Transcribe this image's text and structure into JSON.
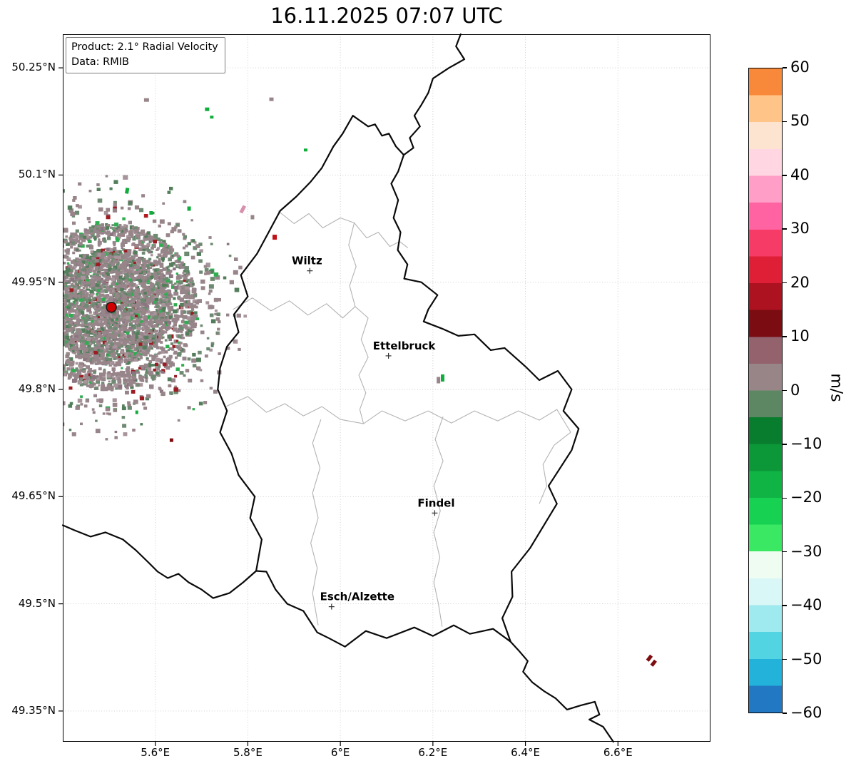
{
  "chart_data": {
    "type": "heatmap",
    "title": "16.11.2025 07:07 UTC",
    "product": "2.1° Radial Velocity",
    "data_source": "RMIB",
    "info_box_lines": [
      "Product: 2.1° Radial Velocity",
      "Data: RMIB"
    ],
    "lon_range": [
      5.4,
      6.8
    ],
    "lat_range": [
      49.307,
      50.297
    ],
    "grid": "dotted",
    "x_ticks": {
      "values": [
        5.6,
        5.8,
        6.0,
        6.2,
        6.4,
        6.6
      ],
      "labels": [
        "5.6°E",
        "5.8°E",
        "6°E",
        "6.2°E",
        "6.4°E",
        "6.6°E"
      ]
    },
    "y_ticks": {
      "values": [
        50.25,
        50.1,
        49.95,
        49.8,
        49.65,
        49.5,
        49.35
      ],
      "labels": [
        "50.25°N",
        "50.1°N",
        "49.95°N",
        "49.8°N",
        "49.65°N",
        "49.5°N",
        "49.35°N"
      ]
    },
    "colorbar": {
      "label": "m/s",
      "min": -60,
      "max": 60,
      "tick_values": [
        60,
        50,
        40,
        30,
        20,
        10,
        0,
        -10,
        -20,
        -30,
        -40,
        -50,
        -60
      ],
      "tick_labels": [
        "60",
        "50",
        "40",
        "30",
        "20",
        "10",
        "0",
        "−10",
        "−20",
        "−30",
        "−40",
        "−50",
        "−60"
      ],
      "colors_bottom_to_top": [
        "#2378c4",
        "#22b2da",
        "#52d4e2",
        "#9feaee",
        "#d8f7f6",
        "#effcf1",
        "#3ae864",
        "#17d152",
        "#10b445",
        "#0c9739",
        "#097d2e",
        "#5d8663",
        "#978588",
        "#93626d",
        "#7a0c12",
        "#ad1220",
        "#df1f35",
        "#f63b67",
        "#ff63a1",
        "#ff9ec6",
        "#ffd6e2",
        "#fce4d0",
        "#ffc487",
        "#f8883a"
      ]
    },
    "cities": [
      {
        "name": "Wiltz",
        "lon": 5.934,
        "lat": 49.966,
        "label_dx": -4
      },
      {
        "name": "Ettelbruck",
        "lon": 6.104,
        "lat": 49.847,
        "label_dx": 22
      },
      {
        "name": "Findel",
        "lon": 6.204,
        "lat": 49.627,
        "label_dx": 2
      },
      {
        "name": "Esch/Alzette",
        "lon": 5.981,
        "lat": 49.496,
        "label_dx": 36
      }
    ],
    "radar_site": {
      "lon": 5.505,
      "lat": 49.915,
      "dot_color": "#d10000"
    },
    "echo_colors": {
      "green": "#10ad3c",
      "red": "#c01018",
      "darkred": "#7d0d10",
      "mauve": "#97858a",
      "pink": "#d890ac"
    },
    "echoes": [
      {
        "lon": 5.581,
        "lat": 50.205,
        "color": "mauve",
        "w": 7,
        "h": 5,
        "rot": 0
      },
      {
        "lon": 5.851,
        "lat": 50.206,
        "color": "mauve",
        "w": 6,
        "h": 5,
        "rot": 0
      },
      {
        "lon": 5.712,
        "lat": 50.192,
        "color": "green",
        "w": 6,
        "h": 5,
        "rot": 0
      },
      {
        "lon": 5.722,
        "lat": 50.181,
        "color": "green",
        "w": 5,
        "h": 4,
        "rot": 0
      },
      {
        "lon": 5.925,
        "lat": 50.135,
        "color": "green",
        "w": 5,
        "h": 4,
        "rot": 0
      },
      {
        "lon": 5.539,
        "lat": 50.078,
        "color": "green",
        "w": 5,
        "h": 8,
        "rot": 10
      },
      {
        "lon": 5.673,
        "lat": 50.053,
        "color": "green",
        "w": 5,
        "h": 6,
        "rot": 0
      },
      {
        "lon": 5.58,
        "lat": 50.043,
        "color": "red",
        "w": 5,
        "h": 5,
        "rot": 0
      },
      {
        "lon": 5.591,
        "lat": 50.047,
        "color": "green",
        "w": 5,
        "h": 5,
        "rot": 0
      },
      {
        "lon": 5.789,
        "lat": 50.052,
        "color": "pink",
        "w": 5,
        "h": 11,
        "rot": 28
      },
      {
        "lon": 5.81,
        "lat": 50.041,
        "color": "mauve",
        "w": 5,
        "h": 6,
        "rot": 0
      },
      {
        "lon": 5.858,
        "lat": 50.013,
        "color": "red",
        "w": 6,
        "h": 7,
        "rot": 0
      },
      {
        "lon": 6.221,
        "lat": 49.816,
        "color": "green",
        "w": 5,
        "h": 10,
        "rot": 0
      },
      {
        "lon": 6.212,
        "lat": 49.813,
        "color": "mauve",
        "w": 5,
        "h": 9,
        "rot": 0
      },
      {
        "lon": 5.635,
        "lat": 49.729,
        "color": "darkred",
        "w": 5,
        "h": 5,
        "rot": 0
      },
      {
        "lon": 5.56,
        "lat": 49.768,
        "color": "green",
        "w": 4,
        "h": 5,
        "rot": 0
      },
      {
        "lon": 6.668,
        "lat": 49.424,
        "color": "darkred",
        "w": 5,
        "h": 9,
        "rot": 38
      },
      {
        "lon": 6.677,
        "lat": 49.417,
        "color": "darkred",
        "w": 5,
        "h": 9,
        "rot": 38
      }
    ],
    "speckle": {
      "seed": 12345,
      "rings": [
        {
          "n": 3000,
          "r0": 0,
          "r1": 85,
          "spoke": 0.0,
          "smin": 3,
          "smax": 6
        },
        {
          "n": 1400,
          "r0": 85,
          "r1": 120,
          "spoke": 0.5,
          "smin": 3,
          "smax": 6.5
        },
        {
          "n": 300,
          "r0": 120,
          "r1": 155,
          "spoke": 0.65,
          "smin": 3.5,
          "smax": 7
        },
        {
          "n": 110,
          "r0": 155,
          "r1": 192,
          "spoke": 0.7,
          "smin": 3.5,
          "smax": 7
        }
      ],
      "palette": [
        {
          "color": "#97858a",
          "w": 0.56
        },
        {
          "color": "#6f8a72",
          "w": 0.16
        },
        {
          "color": "#537e5b",
          "w": 0.09
        },
        {
          "color": "#a8959b",
          "w": 0.08
        },
        {
          "color": "#8a7580",
          "w": 0.05
        },
        {
          "color": "#2fae51",
          "w": 0.04
        },
        {
          "color": "#9b1c22",
          "w": 0.02
        }
      ]
    },
    "borders": {
      "national": [
        [
          [
            6.027,
            50.183
          ],
          [
            6.06,
            50.168
          ],
          [
            6.075,
            50.171
          ],
          [
            6.09,
            50.155
          ],
          [
            6.105,
            50.158
          ],
          [
            6.12,
            50.14
          ],
          [
            6.137,
            50.128
          ],
          [
            6.125,
            50.105
          ],
          [
            6.11,
            50.088
          ],
          [
            6.125,
            50.065
          ],
          [
            6.115,
            50.04
          ],
          [
            6.13,
            50.02
          ],
          [
            6.124,
            49.995
          ],
          [
            6.145,
            49.975
          ],
          [
            6.138,
            49.955
          ],
          [
            6.175,
            49.95
          ],
          [
            6.21,
            49.932
          ],
          [
            6.19,
            49.912
          ],
          [
            6.18,
            49.895
          ],
          [
            6.22,
            49.885
          ],
          [
            6.255,
            49.875
          ],
          [
            6.29,
            49.877
          ],
          [
            6.325,
            49.855
          ],
          [
            6.355,
            49.858
          ],
          [
            6.4,
            49.832
          ],
          [
            6.43,
            49.813
          ],
          [
            6.47,
            49.826
          ],
          [
            6.5,
            49.8
          ],
          [
            6.482,
            49.77
          ],
          [
            6.515,
            49.745
          ],
          [
            6.5,
            49.715
          ],
          [
            6.45,
            49.665
          ],
          [
            6.468,
            49.64
          ],
          [
            6.44,
            49.61
          ],
          [
            6.41,
            49.578
          ],
          [
            6.37,
            49.545
          ],
          [
            6.372,
            49.51
          ],
          [
            6.35,
            49.48
          ],
          [
            6.368,
            49.447
          ],
          [
            6.33,
            49.465
          ],
          [
            6.28,
            49.458
          ],
          [
            6.245,
            49.47
          ],
          [
            6.2,
            49.455
          ],
          [
            6.16,
            49.467
          ],
          [
            6.1,
            49.452
          ],
          [
            6.055,
            49.462
          ],
          [
            6.01,
            49.44
          ],
          [
            5.975,
            49.452
          ],
          [
            5.95,
            49.46
          ],
          [
            5.92,
            49.49
          ],
          [
            5.885,
            49.5
          ],
          [
            5.86,
            49.52
          ],
          [
            5.84,
            49.545
          ],
          [
            5.818,
            49.546
          ],
          [
            5.83,
            49.59
          ],
          [
            5.805,
            49.62
          ],
          [
            5.815,
            49.65
          ],
          [
            5.78,
            49.68
          ],
          [
            5.765,
            49.71
          ],
          [
            5.74,
            49.74
          ],
          [
            5.755,
            49.77
          ],
          [
            5.735,
            49.8
          ],
          [
            5.74,
            49.83
          ],
          [
            5.755,
            49.86
          ],
          [
            5.78,
            49.88
          ],
          [
            5.77,
            49.905
          ],
          [
            5.8,
            49.93
          ],
          [
            5.785,
            49.96
          ],
          [
            5.82,
            49.99
          ],
          [
            5.845,
            50.02
          ],
          [
            5.87,
            50.05
          ],
          [
            5.905,
            50.07
          ],
          [
            5.935,
            50.09
          ],
          [
            5.96,
            50.11
          ],
          [
            5.985,
            50.14
          ],
          [
            6.005,
            50.158
          ],
          [
            6.027,
            50.183
          ]
        ],
        [
          [
            6.26,
            50.297
          ],
          [
            6.25,
            50.28
          ],
          [
            6.268,
            50.262
          ],
          [
            6.235,
            50.25
          ],
          [
            6.2,
            50.235
          ],
          [
            6.19,
            50.215
          ],
          [
            6.175,
            50.198
          ],
          [
            6.16,
            50.183
          ],
          [
            6.172,
            50.168
          ],
          [
            6.15,
            50.152
          ],
          [
            6.158,
            50.138
          ],
          [
            6.137,
            50.128
          ]
        ],
        [
          [
            5.4,
            49.61
          ],
          [
            5.425,
            49.603
          ],
          [
            5.46,
            49.594
          ],
          [
            5.492,
            49.6
          ],
          [
            5.53,
            49.59
          ],
          [
            5.558,
            49.575
          ],
          [
            5.585,
            49.558
          ],
          [
            5.605,
            49.545
          ],
          [
            5.627,
            49.536
          ],
          [
            5.65,
            49.542
          ],
          [
            5.672,
            49.53
          ],
          [
            5.7,
            49.52
          ],
          [
            5.725,
            49.508
          ],
          [
            5.76,
            49.515
          ],
          [
            5.79,
            49.53
          ],
          [
            5.818,
            49.546
          ]
        ],
        [
          [
            6.368,
            49.447
          ],
          [
            6.385,
            49.435
          ],
          [
            6.405,
            49.42
          ],
          [
            6.395,
            49.405
          ],
          [
            6.415,
            49.39
          ],
          [
            6.44,
            49.378
          ],
          [
            6.465,
            49.368
          ],
          [
            6.49,
            49.352
          ],
          [
            6.52,
            49.358
          ],
          [
            6.55,
            49.363
          ],
          [
            6.56,
            49.345
          ],
          [
            6.538,
            49.338
          ],
          [
            6.568,
            49.328
          ],
          [
            6.59,
            49.307
          ]
        ]
      ],
      "district": [
        [
          [
            5.865,
            50.05
          ],
          [
            5.9,
            50.032
          ],
          [
            5.932,
            50.046
          ],
          [
            5.962,
            50.026
          ],
          [
            6.0,
            50.04
          ],
          [
            6.03,
            50.033
          ],
          [
            6.057,
            50.012
          ],
          [
            6.082,
            50.02
          ],
          [
            6.107,
            50.0
          ],
          [
            6.128,
            50.007
          ],
          [
            6.146,
            49.998
          ]
        ],
        [
          [
            6.03,
            50.033
          ],
          [
            6.018,
            50.002
          ],
          [
            6.034,
            49.972
          ],
          [
            6.02,
            49.945
          ],
          [
            6.032,
            49.916
          ]
        ],
        [
          [
            5.768,
            49.912
          ],
          [
            5.81,
            49.928
          ],
          [
            5.85,
            49.91
          ],
          [
            5.89,
            49.924
          ],
          [
            5.93,
            49.904
          ],
          [
            5.97,
            49.92
          ],
          [
            6.005,
            49.9
          ],
          [
            6.032,
            49.916
          ],
          [
            6.06,
            49.9
          ]
        ],
        [
          [
            6.06,
            49.9
          ],
          [
            6.045,
            49.87
          ],
          [
            6.06,
            49.845
          ],
          [
            6.04,
            49.82
          ],
          [
            6.055,
            49.795
          ],
          [
            6.042,
            49.772
          ],
          [
            6.05,
            49.752
          ]
        ],
        [
          [
            5.752,
            49.776
          ],
          [
            5.8,
            49.79
          ],
          [
            5.84,
            49.768
          ],
          [
            5.88,
            49.78
          ],
          [
            5.92,
            49.763
          ],
          [
            5.96,
            49.776
          ],
          [
            6.0,
            49.758
          ],
          [
            6.05,
            49.752
          ],
          [
            6.09,
            49.77
          ],
          [
            6.14,
            49.756
          ],
          [
            6.19,
            49.77
          ],
          [
            6.24,
            49.753
          ],
          [
            6.29,
            49.77
          ],
          [
            6.34,
            49.756
          ],
          [
            6.385,
            49.77
          ],
          [
            6.43,
            49.757
          ],
          [
            6.468,
            49.772
          ],
          [
            6.498,
            49.74
          ]
        ],
        [
          [
            6.222,
            49.762
          ],
          [
            6.205,
            49.73
          ],
          [
            6.222,
            49.7
          ],
          [
            6.202,
            49.665
          ],
          [
            6.216,
            49.63
          ],
          [
            6.202,
            49.6
          ],
          [
            6.215,
            49.565
          ],
          [
            6.202,
            49.53
          ],
          [
            6.212,
            49.5
          ],
          [
            6.22,
            49.468
          ]
        ],
        [
          [
            5.958,
            49.758
          ],
          [
            5.94,
            49.725
          ],
          [
            5.956,
            49.69
          ],
          [
            5.94,
            49.655
          ],
          [
            5.952,
            49.62
          ],
          [
            5.936,
            49.585
          ],
          [
            5.95,
            49.55
          ],
          [
            5.94,
            49.515
          ],
          [
            5.952,
            49.47
          ]
        ],
        [
          [
            6.498,
            49.74
          ],
          [
            6.462,
            49.722
          ],
          [
            6.438,
            49.695
          ],
          [
            6.446,
            49.665
          ],
          [
            6.43,
            49.64
          ]
        ]
      ]
    }
  }
}
